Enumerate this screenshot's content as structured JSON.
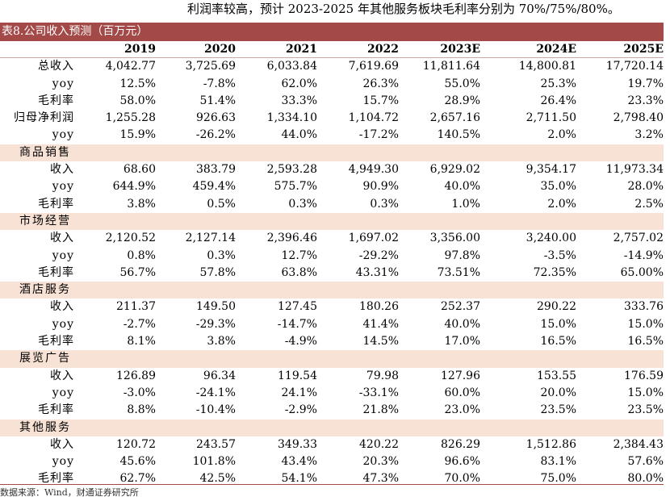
{
  "top_text": "利润率较高，预计 2023-2025 年其他服务板块毛利率分别为 70%/75%/80%。",
  "table_title": "表8.公司收入预测（百万元）",
  "years": [
    "2019",
    "2020",
    "2021",
    "2022",
    "2023E",
    "2024E",
    "2025E"
  ],
  "rows": [
    {
      "type": "data",
      "label": "总收入",
      "values": [
        "4,042.77",
        "3,725.69",
        "6,033.84",
        "7,619.69",
        "11,811.64",
        "14,800.81",
        "17,720.14"
      ]
    },
    {
      "type": "data",
      "label": "yoy",
      "values": [
        "12.5%",
        "-7.8%",
        "62.0%",
        "26.3%",
        "55.0%",
        "25.3%",
        "19.7%"
      ]
    },
    {
      "type": "data",
      "label": "毛利率",
      "values": [
        "58.0%",
        "51.4%",
        "33.3%",
        "15.7%",
        "28.9%",
        "26.4%",
        "23.3%"
      ]
    },
    {
      "type": "data",
      "label": "归母净利润",
      "values": [
        "1,255.28",
        "926.63",
        "1,334.10",
        "1,104.72",
        "2,657.16",
        "2,711.50",
        "2,798.40"
      ]
    },
    {
      "type": "data",
      "label": "yoy",
      "values": [
        "15.9%",
        "-26.2%",
        "44.0%",
        "-17.2%",
        "140.5%",
        "2.0%",
        "3.2%"
      ]
    },
    {
      "type": "section",
      "label": "商品销售"
    },
    {
      "type": "data",
      "label": "收入",
      "values": [
        "68.60",
        "383.79",
        "2,593.28",
        "4,949.30",
        "6,929.02",
        "9,354.17",
        "11,973.34"
      ]
    },
    {
      "type": "data",
      "label": "yoy",
      "values": [
        "644.9%",
        "459.4%",
        "575.7%",
        "90.9%",
        "40.0%",
        "35.0%",
        "28.0%"
      ]
    },
    {
      "type": "data",
      "label": "毛利率",
      "values": [
        "3.8%",
        "0.5%",
        "0.3%",
        "0.3%",
        "1.0%",
        "2.0%",
        "2.5%"
      ]
    },
    {
      "type": "section",
      "label": "市场经营"
    },
    {
      "type": "data",
      "label": "收入",
      "values": [
        "2,120.52",
        "2,127.14",
        "2,396.46",
        "1,697.02",
        "3,356.00",
        "3,240.00",
        "2,757.02"
      ]
    },
    {
      "type": "data",
      "label": "yoy",
      "values": [
        "0.8%",
        "0.3%",
        "12.7%",
        "-29.2%",
        "97.8%",
        "-3.5%",
        "-14.9%"
      ]
    },
    {
      "type": "data",
      "label": "毛利率",
      "values": [
        "56.7%",
        "57.8%",
        "63.8%",
        "43.31%",
        "73.51%",
        "72.35%",
        "65.00%"
      ]
    },
    {
      "type": "section",
      "label": "酒店服务"
    },
    {
      "type": "data",
      "label": "收入",
      "values": [
        "211.37",
        "149.50",
        "127.45",
        "180.26",
        "252.37",
        "290.22",
        "333.76"
      ]
    },
    {
      "type": "data",
      "label": "yoy",
      "values": [
        "-2.7%",
        "-29.3%",
        "-14.7%",
        "41.4%",
        "40.0%",
        "15.0%",
        "15.0%"
      ]
    },
    {
      "type": "data",
      "label": "毛利率",
      "values": [
        "8.1%",
        "3.8%",
        "-4.9%",
        "14.5%",
        "17.0%",
        "16.5%",
        "16.5%"
      ]
    },
    {
      "type": "section",
      "label": "展览广告"
    },
    {
      "type": "data",
      "label": "收入",
      "values": [
        "126.89",
        "96.34",
        "119.54",
        "79.98",
        "127.96",
        "153.55",
        "176.59"
      ]
    },
    {
      "type": "data",
      "label": "yoy",
      "values": [
        "-3.0%",
        "-24.1%",
        "24.1%",
        "-33.1%",
        "60.0%",
        "20.0%",
        "15.0%"
      ]
    },
    {
      "type": "data",
      "label": "毛利率",
      "values": [
        "8.8%",
        "-10.4%",
        "-2.9%",
        "21.8%",
        "23.0%",
        "23.5%",
        "23.5%"
      ]
    },
    {
      "type": "section",
      "label": "其他服务"
    },
    {
      "type": "data",
      "label": "收入",
      "values": [
        "120.72",
        "243.57",
        "349.33",
        "420.22",
        "826.29",
        "1,512.86",
        "2,384.43"
      ]
    },
    {
      "type": "data",
      "label": "yoy",
      "values": [
        "45.6%",
        "101.8%",
        "43.4%",
        "20.3%",
        "96.6%",
        "83.1%",
        "57.6%"
      ]
    },
    {
      "type": "data",
      "label": "毛利率",
      "values": [
        "62.7%",
        "42.5%",
        "54.1%",
        "47.3%",
        "70.0%",
        "75.0%",
        "80.0%"
      ]
    }
  ],
  "source": "数据来源：Wind，财通证券研究所",
  "colors": {
    "title_bar": "#a34a48",
    "section_band": "#f8e2d6"
  }
}
